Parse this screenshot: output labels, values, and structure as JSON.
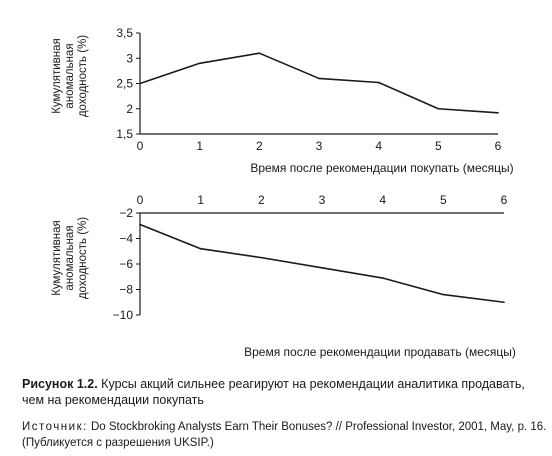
{
  "chart_data": [
    {
      "type": "line",
      "x": [
        0,
        1,
        2,
        3,
        4,
        5,
        6
      ],
      "series": [
        {
          "values": [
            2.5,
            2.9,
            3.1,
            2.6,
            2.52,
            2.0,
            1.92
          ]
        }
      ],
      "xlabel": "Время после рекомендации покупать (месяцы)",
      "ylabel": [
        "Кумулятивная",
        "аномальная",
        "доходность (%)"
      ],
      "xticks": [
        "0",
        "1",
        "2",
        "3",
        "4",
        "5",
        "6"
      ],
      "yticks": [
        "1,5",
        "2",
        "2,5",
        "3",
        "3,5"
      ],
      "ylim": [
        1.5,
        3.5
      ],
      "xlim": [
        0,
        6
      ],
      "grid": false
    },
    {
      "type": "line",
      "x": [
        0,
        1,
        2,
        3,
        4,
        5,
        6
      ],
      "series": [
        {
          "values": [
            -2.9,
            -4.8,
            -5.5,
            -6.3,
            -7.1,
            -8.4,
            -9.0
          ]
        }
      ],
      "xlabel": "Время после рекомендации продавать (месяцы)",
      "ylabel": [
        "Кумулятивная",
        "аномальная",
        "доходность (%)"
      ],
      "xticks": [
        "0",
        "1",
        "2",
        "3",
        "4",
        "5",
        "6"
      ],
      "yticks": [
        "−2",
        "−4",
        "−6",
        "−8",
        "−10"
      ],
      "ylim": [
        -10,
        -2
      ],
      "xlim": [
        0,
        6
      ],
      "grid": false
    }
  ],
  "caption": {
    "label": "Рисунок 1.2.",
    "text": " Курсы акций сильнее реагируют на рекомендации аналитика продавать, чем на рекомендации покупать"
  },
  "source": {
    "label": "Источник:",
    "text": " Do Stockbroking Analysts Earn Their Bonuses? // Professional Investor, 2001, May, p. 16. (Публикуется с разрешения UKSIP.)"
  },
  "colors": {
    "line": "#1a1a1a",
    "axis": "#1a1a1a"
  }
}
